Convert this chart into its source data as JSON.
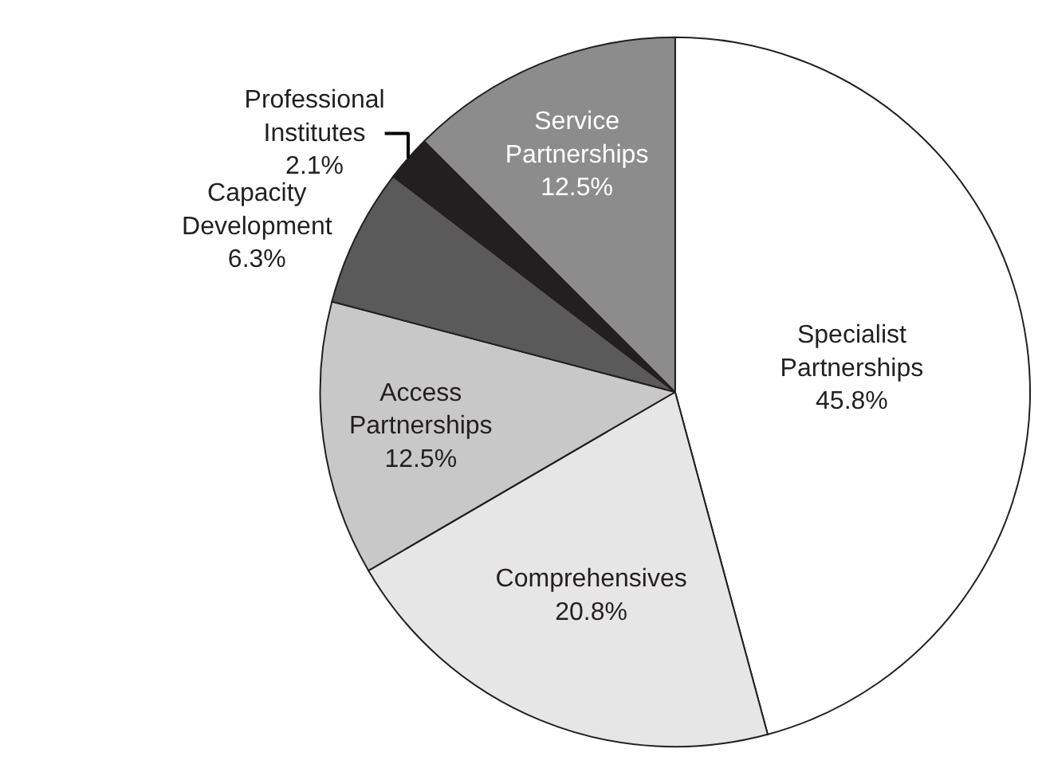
{
  "chart_data": {
    "type": "pie",
    "categories": [
      "Specialist Partnerships",
      "Comprehensives",
      "Access Partnerships",
      "Capacity Development",
      "Professional Institutes",
      "Service Partnerships"
    ],
    "values": [
      45.8,
      20.8,
      12.5,
      6.3,
      2.1,
      12.5
    ],
    "value_labels": [
      "45.8%",
      "20.8%",
      "12.5%",
      "6.3%",
      "2.1%",
      "12.5%"
    ],
    "colors": [
      "#ffffff",
      "#e6e6e6",
      "#c8c8c8",
      "#5a5a5a",
      "#231f20",
      "#8c8c8c"
    ],
    "legend": false
  }
}
